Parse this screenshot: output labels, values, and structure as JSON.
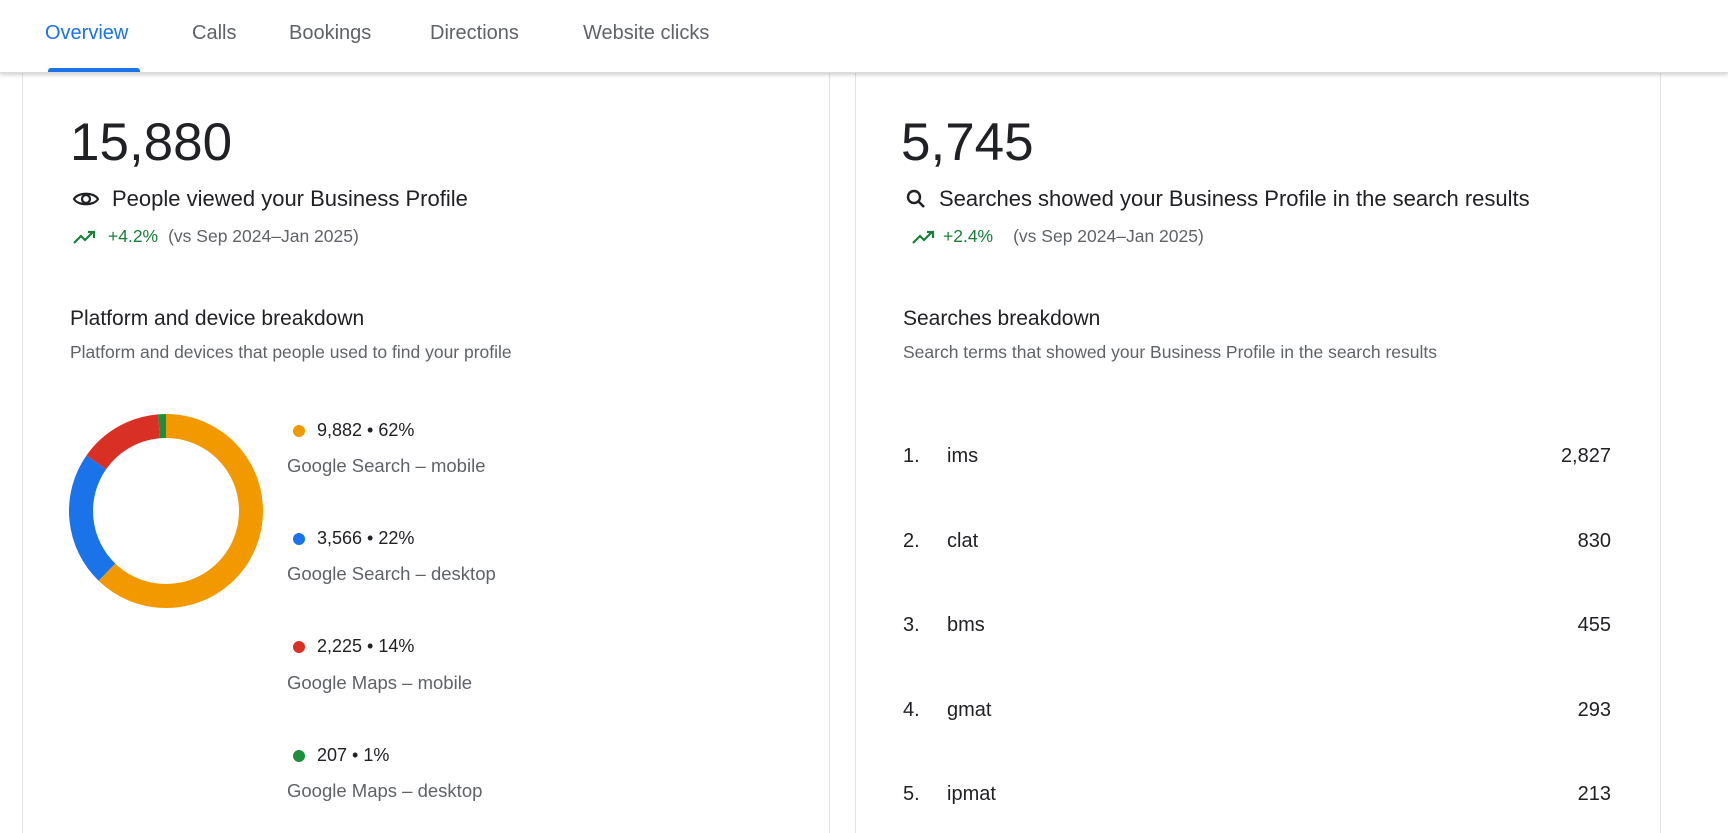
{
  "tabs": [
    {
      "label": "Overview",
      "active": true
    },
    {
      "label": "Calls"
    },
    {
      "label": "Bookings"
    },
    {
      "label": "Directions"
    },
    {
      "label": "Website clicks"
    }
  ],
  "views": {
    "total": "15,880",
    "icon": "eye-icon",
    "label": "People viewed your Business Profile",
    "trend_icon": "trending-up-icon",
    "change": "+4.2%",
    "comparison": "(vs Sep 2024–Jan 2025)",
    "breakdown_title": "Platform and device breakdown",
    "breakdown_subtitle": "Platform and devices that people used to find your profile"
  },
  "searches": {
    "total": "5,745",
    "icon": "search-icon",
    "label": "Searches showed your Business Profile in the search results",
    "trend_icon": "trending-up-icon",
    "change": "+2.4%",
    "comparison": "(vs Sep 2024–Jan 2025)",
    "breakdown_title": "Searches breakdown",
    "breakdown_subtitle": "Search terms that showed your Business Profile in the search results",
    "terms": [
      {
        "rank": "1.",
        "term": "ims",
        "count": "2,827"
      },
      {
        "rank": "2.",
        "term": "clat",
        "count": "830"
      },
      {
        "rank": "3.",
        "term": "bms",
        "count": "455"
      },
      {
        "rank": "4.",
        "term": "gmat",
        "count": "293"
      },
      {
        "rank": "5.",
        "term": "ipmat",
        "count": "213"
      }
    ]
  },
  "chart_data": {
    "type": "pie",
    "donut": true,
    "categories": [
      "Google Search – mobile",
      "Google Search – desktop",
      "Google Maps – mobile",
      "Google Maps – desktop"
    ],
    "values": [
      9882,
      3566,
      2225,
      207
    ],
    "percent_labels": [
      "62%",
      "22%",
      "14%",
      "1%"
    ],
    "value_labels": [
      "9,882 • 62%",
      "3,566 • 22%",
      "2,225 • 14%",
      "207 • 1%"
    ],
    "colors": [
      "#f29900",
      "#1a73e8",
      "#d93025",
      "#1e8e3e"
    ],
    "legend_placement": "right"
  }
}
